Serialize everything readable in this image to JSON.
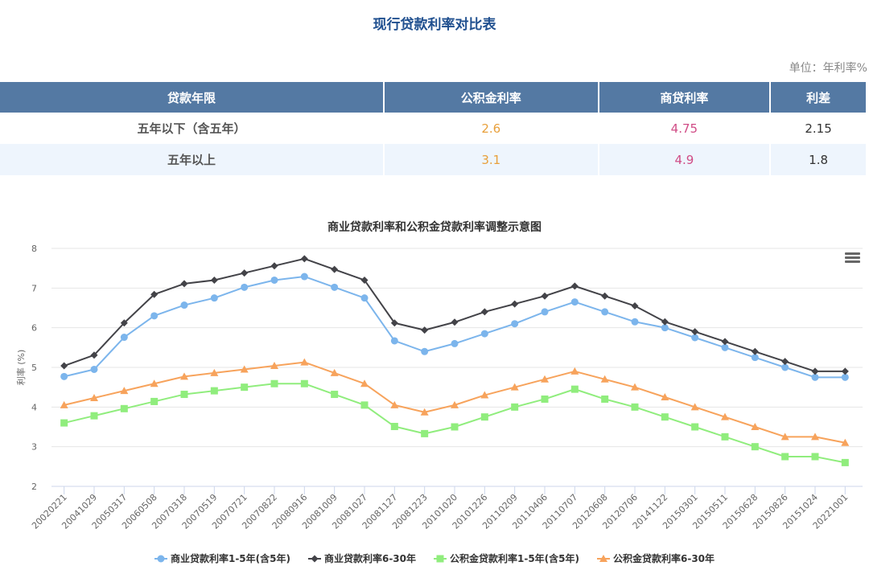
{
  "header": {
    "title": "现行贷款利率对比表",
    "unit": "单位：年利率%"
  },
  "table": {
    "columns": [
      "贷款年限",
      "公积金利率",
      "商贷利率",
      "利差"
    ],
    "rows": [
      {
        "term": "五年以下（含五年）",
        "hpf": "2.6",
        "commercial": "4.75",
        "diff": "2.15"
      },
      {
        "term": "五年以上",
        "hpf": "3.1",
        "commercial": "4.9",
        "diff": "1.8"
      }
    ]
  },
  "menu_icon": "hamburger-menu-icon",
  "chart_data": {
    "type": "line",
    "title": "商业贷款利率和公积金贷款利率调整示意图",
    "xlabel": "",
    "ylabel": "利率 (%)",
    "ylim": [
      2,
      8
    ],
    "yticks": [
      2,
      3,
      4,
      5,
      6,
      7,
      8
    ],
    "grid": true,
    "legend_position": "bottom",
    "categories": [
      "20020221",
      "20041029",
      "20050317",
      "20060508",
      "20070318",
      "20070519",
      "20070721",
      "20070822",
      "20080916",
      "20081009",
      "20081027",
      "20081127",
      "20081223",
      "20101020",
      "20101226",
      "20110209",
      "20110406",
      "20110707",
      "20120608",
      "20120706",
      "20141122",
      "20150301",
      "20150511",
      "20150628",
      "20150826",
      "20151024",
      "20221001"
    ],
    "series": [
      {
        "name": "商业贷款利率1-5年(含5年)",
        "color": "#7cb5ec",
        "marker": "circle",
        "values": [
          4.77,
          4.95,
          5.76,
          6.3,
          6.57,
          6.75,
          7.02,
          7.2,
          7.29,
          7.02,
          6.75,
          5.67,
          5.4,
          5.6,
          5.85,
          6.1,
          6.4,
          6.65,
          6.4,
          6.15,
          6.0,
          5.75,
          5.5,
          5.25,
          5.0,
          4.75,
          4.75
        ]
      },
      {
        "name": "商业贷款利率6-30年",
        "color": "#434348",
        "marker": "diamond",
        "values": [
          5.04,
          5.31,
          6.12,
          6.84,
          7.11,
          7.2,
          7.38,
          7.56,
          7.74,
          7.47,
          7.2,
          6.12,
          5.94,
          6.14,
          6.4,
          6.6,
          6.8,
          7.05,
          6.8,
          6.55,
          6.15,
          5.9,
          5.65,
          5.4,
          5.15,
          4.9,
          4.9
        ]
      },
      {
        "name": "公积金贷款利率1-5年(含5年)",
        "color": "#90ed7d",
        "marker": "square",
        "values": [
          3.6,
          3.78,
          3.96,
          4.14,
          4.32,
          4.41,
          4.5,
          4.59,
          4.59,
          4.32,
          4.05,
          3.51,
          3.33,
          3.5,
          3.75,
          4.0,
          4.2,
          4.45,
          4.2,
          4.0,
          3.75,
          3.5,
          3.25,
          3.0,
          2.75,
          2.75,
          2.6
        ]
      },
      {
        "name": "公积金贷款利率6-30年",
        "color": "#f7a35c",
        "marker": "triangle",
        "values": [
          4.05,
          4.23,
          4.41,
          4.59,
          4.77,
          4.86,
          4.95,
          5.04,
          5.13,
          4.86,
          4.59,
          4.05,
          3.87,
          4.05,
          4.3,
          4.5,
          4.7,
          4.9,
          4.7,
          4.5,
          4.25,
          4.0,
          3.75,
          3.5,
          3.25,
          3.25,
          3.1
        ]
      }
    ]
  }
}
